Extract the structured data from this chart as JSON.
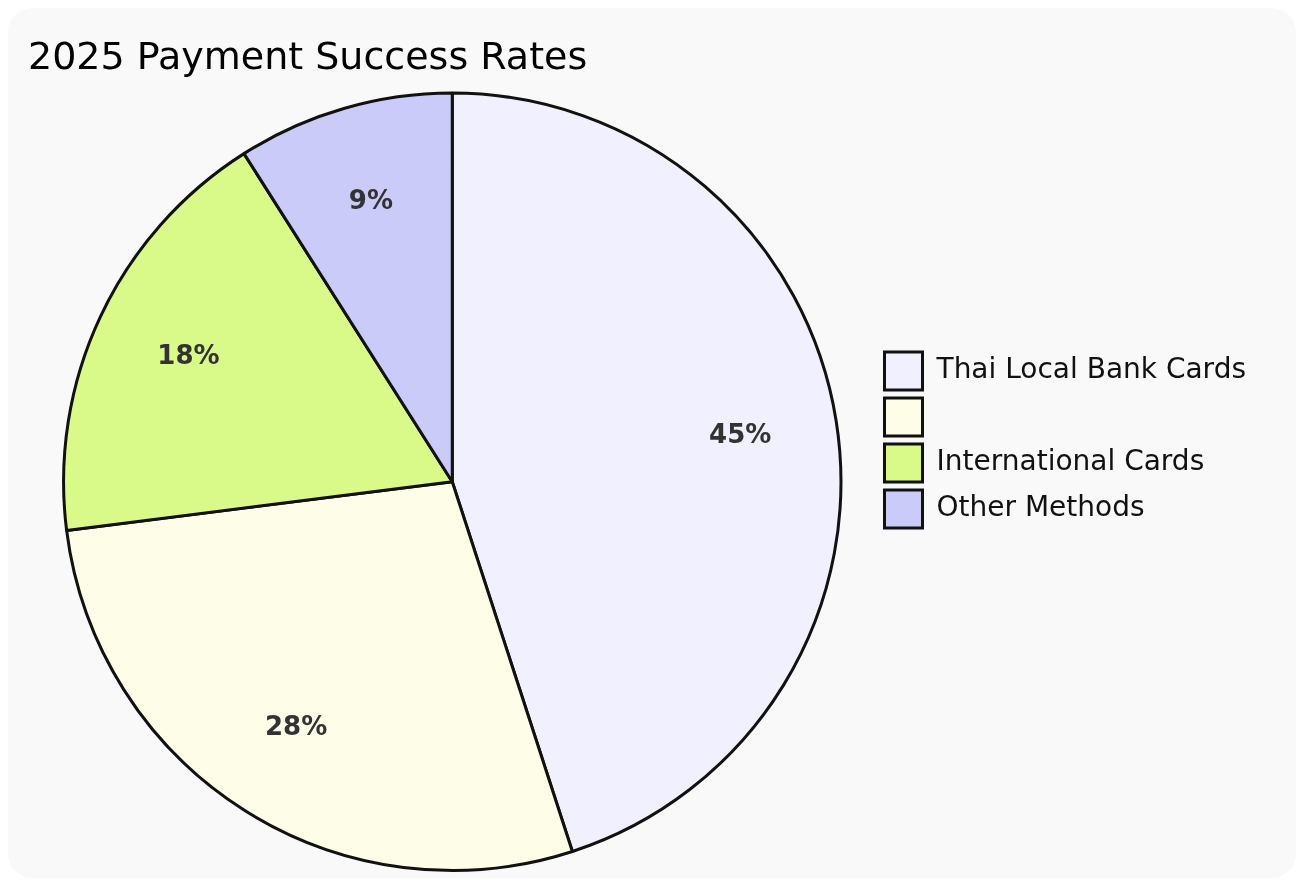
{
  "chart_data": {
    "type": "pie",
    "title": "2025 Payment Success Rates",
    "categories": [
      "Thai Local Bank Cards",
      null,
      "International Cards",
      "Other Methods"
    ],
    "values": [
      45,
      28,
      18,
      9
    ],
    "colors": [
      "#f0f0fe",
      "#fdfde8",
      "#d9fa88",
      "#cbcbfa"
    ],
    "value_labels": [
      "45%",
      "28%",
      "18%",
      "9%"
    ],
    "legend": "right"
  }
}
